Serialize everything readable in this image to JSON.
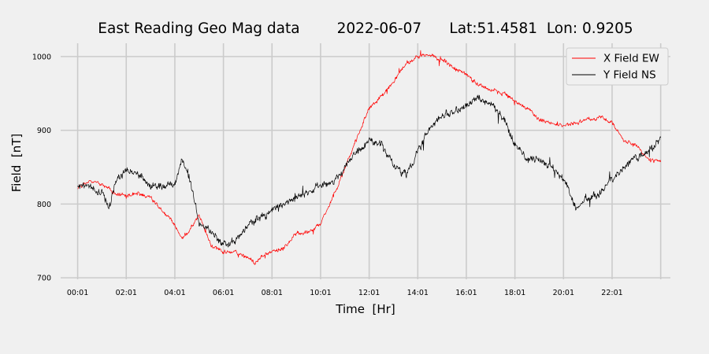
{
  "chart_data": {
    "type": "line",
    "title": "East Reading Geo Mag data        2022-06-07      Lat:51.4581  Lon: 0.9205",
    "xlabel": "Time  [Hr]",
    "ylabel": "Field  [nT]",
    "x_tick_labels": [
      "00:01",
      "02:01",
      "04:01",
      "06:01",
      "08:01",
      "10:01",
      "12:01",
      "14:01",
      "16:01",
      "18:01",
      "20:01",
      "22:01",
      ""
    ],
    "y_tick_labels": [
      "700",
      "800",
      "900",
      "1000"
    ],
    "y_ticks": [
      700,
      800,
      900,
      1000
    ],
    "ylim": [
      698,
      1018
    ],
    "xlim_hours": [
      -0.7,
      24.4
    ],
    "grid": true,
    "legend_position": "top-right",
    "colors": {
      "x_field": "#ff0000",
      "y_field": "#000000",
      "background": "#f0f0f0",
      "grid": "#cbcbcb"
    },
    "series": [
      {
        "name": "X Field EW",
        "color": "#ff0000",
        "x_hours": [
          0,
          0.5,
          1,
          1.5,
          2,
          2.5,
          3,
          3.5,
          4,
          4.3,
          4.6,
          5,
          5.5,
          6,
          6.5,
          7,
          7.3,
          7.6,
          8,
          8.5,
          9,
          9.5,
          10,
          10.5,
          11,
          11.5,
          12,
          12.5,
          13,
          13.5,
          14,
          14.5,
          15,
          15.5,
          16,
          16.5,
          17,
          17.5,
          18,
          18.5,
          19,
          19.5,
          20,
          20.5,
          21,
          21.5,
          22,
          22.5,
          23,
          23.5,
          24
        ],
        "values": [
          822,
          830,
          828,
          815,
          810,
          815,
          808,
          790,
          772,
          752,
          765,
          785,
          745,
          735,
          735,
          728,
          720,
          730,
          735,
          740,
          760,
          762,
          775,
          808,
          848,
          890,
          930,
          946,
          965,
          990,
          1000,
          1003,
          995,
          985,
          975,
          962,
          955,
          950,
          940,
          930,
          915,
          910,
          906,
          910,
          915,
          918,
          910,
          885,
          880,
          860,
          858
        ]
      },
      {
        "name": "Y Field NS",
        "color": "#000000",
        "x_hours": [
          0,
          0.5,
          1,
          1.3,
          1.6,
          2,
          2.3,
          2.6,
          3,
          3.5,
          4,
          4.3,
          4.6,
          5,
          5.5,
          6,
          6.5,
          7,
          7.5,
          8,
          8.5,
          9,
          9.5,
          10,
          10.5,
          11,
          11.5,
          12,
          12.5,
          13,
          13.5,
          14,
          14.5,
          15,
          15.5,
          16,
          16.5,
          17,
          17.5,
          18,
          18.5,
          19,
          19.5,
          20,
          20.5,
          21,
          21.5,
          22,
          22.5,
          23,
          23.5,
          24
        ],
        "values": [
          825,
          825,
          815,
          795,
          835,
          845,
          842,
          838,
          825,
          822,
          828,
          860,
          835,
          775,
          760,
          745,
          750,
          770,
          782,
          790,
          800,
          810,
          815,
          825,
          830,
          850,
          870,
          885,
          882,
          852,
          840,
          870,
          905,
          920,
          925,
          935,
          945,
          935,
          920,
          880,
          860,
          862,
          852,
          835,
          795,
          810,
          815,
          835,
          850,
          865,
          870,
          890
        ]
      }
    ]
  }
}
